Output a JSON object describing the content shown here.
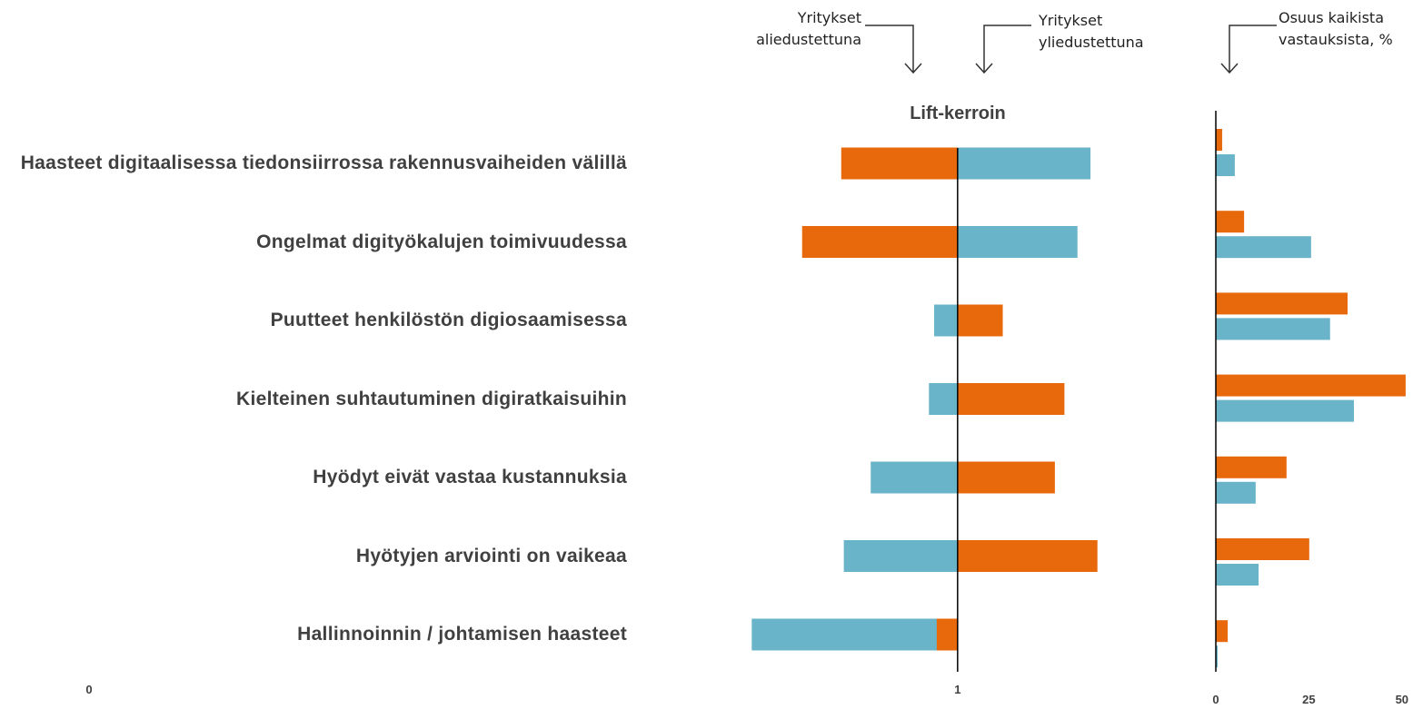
{
  "chart_data": [
    {
      "type": "bar",
      "orientation": "horizontal",
      "title": "Lift-kerroin",
      "annotations": [
        "Yritykset aliedustettuna",
        "Yritykset yliedustettuna"
      ],
      "categories": [
        "Haasteet digitaalisessa tiedonsiirrossa rakennusvaiheiden välillä",
        "Ongelmat digityökalujen toimivuudessa",
        "Puutteet henkilöstön digiosaamisessa",
        "Kielteinen suhtautuminen digiratkaisuihin",
        "Hyödyt eivät vastaa kustannuksia",
        "Hyötyjen arviointi on vaikeaa",
        "Hallinnoinnin / johtamisen haasteet"
      ],
      "series": [
        {
          "color": "#6ab4c9",
          "values": [
            1.153,
            1.138,
            0.973,
            0.967,
            0.9,
            0.869,
            0.763
          ]
        },
        {
          "color": "#e8690b",
          "values": [
            0.866,
            0.821,
            1.052,
            1.123,
            1.112,
            1.161,
            0.976
          ]
        }
      ],
      "baseline": 1,
      "xlim": [
        0,
        1.2
      ],
      "xticks": [
        0,
        1
      ]
    },
    {
      "type": "bar",
      "orientation": "horizontal",
      "title": "Osuus kaikista vastauksista, %",
      "series": [
        {
          "color": "#e8690b",
          "values": [
            1.7,
            7.6,
            35.4,
            51.0,
            19.0,
            25.1,
            3.2
          ]
        },
        {
          "color": "#6ab4c9",
          "values": [
            5.1,
            25.6,
            30.7,
            37.1,
            10.7,
            11.5,
            0.5
          ]
        }
      ],
      "xlim": [
        0,
        52
      ],
      "xticks": [
        0,
        25,
        50
      ]
    }
  ]
}
